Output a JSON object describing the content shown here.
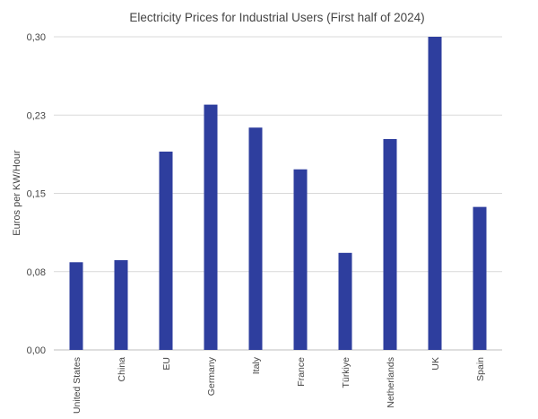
{
  "chart_data": {
    "type": "bar",
    "title": "Electricity Prices for Industrial Users (First half of 2024)",
    "xlabel": "",
    "ylabel": "Euros per KW/Hour",
    "categories": [
      "United States",
      "China",
      "EU",
      "Germany",
      "Italy",
      "France",
      "Türkiye",
      "Netherlands",
      "UK",
      "Spain"
    ],
    "values": [
      0.084,
      0.086,
      0.19,
      0.235,
      0.213,
      0.173,
      0.093,
      0.202,
      0.3,
      0.137
    ],
    "yticks": [
      0.0,
      0.075,
      0.15,
      0.225,
      0.3
    ],
    "ytick_labels": [
      "0,00",
      "0,08",
      "0,15",
      "0,23",
      "0,30"
    ],
    "ylim": [
      0,
      0.3
    ],
    "grid": true,
    "legend": "none",
    "bar_color": "#2e3e9e"
  }
}
